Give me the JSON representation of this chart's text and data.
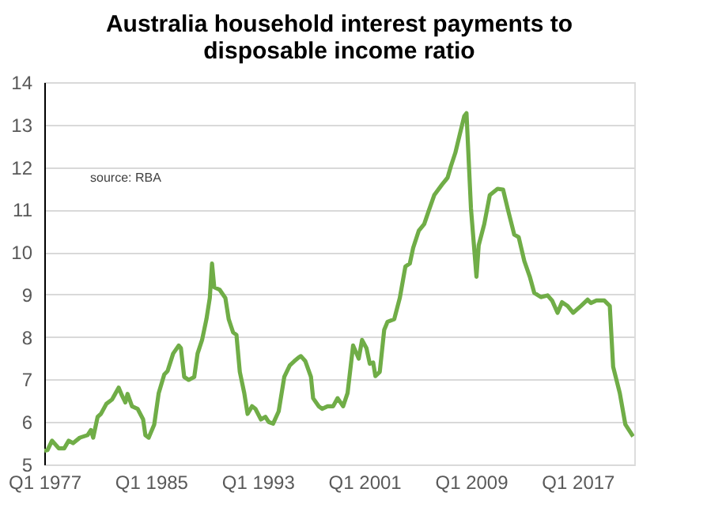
{
  "chart_data": {
    "type": "line",
    "title": "Australia household interest payments to disposable income ratio",
    "annotations": [
      "source:  RBA"
    ],
    "x": [
      "1977-01",
      "1977-04",
      "1977-08",
      "1978-02",
      "1978-07",
      "1978-11",
      "1979-03",
      "1979-09",
      "1980-04",
      "1980-07",
      "1980-09",
      "1981-01",
      "1981-04",
      "1981-09",
      "1982-02",
      "1982-04",
      "1982-08",
      "1982-11",
      "1983-02",
      "1983-04",
      "1983-08",
      "1984-01",
      "1984-06",
      "1984-08",
      "1984-11",
      "1985-04",
      "1985-08",
      "1986-01",
      "1986-04",
      "1986-09",
      "1987-02",
      "1987-04",
      "1987-07",
      "1987-11",
      "1988-04",
      "1988-07",
      "1988-11",
      "1989-03",
      "1989-06",
      "1989-08",
      "1989-10",
      "1990-03",
      "1990-08",
      "1990-11",
      "1991-03",
      "1991-06",
      "1991-09",
      "1992-01",
      "1992-04",
      "1992-08",
      "1992-11",
      "1993-04",
      "1993-08",
      "1993-11",
      "1994-03",
      "1994-08",
      "1995-01",
      "1995-06",
      "1995-10",
      "1996-02",
      "1996-04",
      "1996-08",
      "1997-01",
      "1997-03",
      "1997-08",
      "1997-11",
      "1998-04",
      "1998-09",
      "1999-01",
      "1999-06",
      "1999-10",
      "2000-03",
      "2000-08",
      "2000-11",
      "2001-03",
      "2001-06",
      "2001-09",
      "2001-11",
      "2002-03",
      "2002-07",
      "2002-10",
      "2003-04",
      "2003-09",
      "2004-02",
      "2004-06",
      "2004-09",
      "2005-02",
      "2005-07",
      "2005-11",
      "2006-04",
      "2006-11",
      "2007-04",
      "2007-07",
      "2007-11",
      "2008-03",
      "2008-07",
      "2008-09",
      "2009-01",
      "2009-06",
      "2009-08",
      "2010-01",
      "2010-06",
      "2011-01",
      "2011-06",
      "2011-10",
      "2012-04",
      "2012-08",
      "2013-01",
      "2013-06",
      "2013-10",
      "2014-04",
      "2014-10",
      "2015-02",
      "2015-07",
      "2015-11",
      "2016-04",
      "2016-09",
      "2017-04",
      "2017-10",
      "2018-01",
      "2018-06",
      "2019-01",
      "2019-06",
      "2019-09",
      "2020-03",
      "2020-08",
      "2021-03"
    ],
    "series": [
      {
        "color": "#70ad47",
        "values": [
          5.32,
          5.34,
          5.56,
          5.38,
          5.38,
          5.56,
          5.5,
          5.63,
          5.69,
          5.81,
          5.63,
          6.12,
          6.19,
          6.43,
          6.53,
          6.62,
          6.81,
          6.62,
          6.46,
          6.66,
          6.37,
          6.31,
          6.06,
          5.69,
          5.63,
          5.94,
          6.68,
          7.12,
          7.2,
          7.61,
          7.8,
          7.74,
          7.06,
          6.99,
          7.06,
          7.61,
          7.93,
          8.42,
          8.92,
          9.73,
          9.17,
          9.11,
          8.92,
          8.42,
          8.11,
          8.05,
          7.18,
          6.68,
          6.19,
          6.37,
          6.31,
          6.06,
          6.12,
          6.0,
          5.96,
          6.25,
          7.06,
          7.33,
          7.43,
          7.52,
          7.55,
          7.43,
          7.06,
          6.56,
          6.37,
          6.31,
          6.37,
          6.37,
          6.56,
          6.37,
          6.68,
          7.8,
          7.49,
          7.93,
          7.74,
          7.37,
          7.4,
          7.08,
          7.18,
          8.17,
          8.36,
          8.42,
          8.92,
          9.66,
          9.73,
          10.1,
          10.5,
          10.66,
          10.97,
          11.34,
          11.59,
          11.75,
          12.02,
          12.34,
          12.77,
          13.2,
          13.27,
          11.03,
          9.42,
          10.16,
          10.66,
          11.34,
          11.49,
          11.47,
          11.03,
          10.41,
          10.35,
          9.79,
          9.42,
          9.04,
          8.94,
          8.98,
          8.86,
          8.57,
          8.82,
          8.73,
          8.57,
          8.73,
          8.88,
          8.8,
          8.86,
          8.86,
          8.73,
          7.3,
          6.68,
          5.94,
          5.66
        ]
      }
    ],
    "xlim": [
      "1977-01",
      "2021-04"
    ],
    "xticks": [
      {
        "value": "1977-01",
        "label": "Q1 1977"
      },
      {
        "value": "1985-01",
        "label": "Q1 1985"
      },
      {
        "value": "1993-01",
        "label": "Q1 1993"
      },
      {
        "value": "2001-01",
        "label": "Q1 2001"
      },
      {
        "value": "2009-01",
        "label": "Q1 2009"
      },
      {
        "value": "2017-01",
        "label": "Q1 2017"
      }
    ],
    "ylim": [
      5,
      14
    ],
    "yticks": [
      5,
      6,
      7,
      8,
      9,
      10,
      11,
      12,
      13,
      14
    ],
    "grid": "y",
    "marker": "none",
    "line_style": "solid"
  }
}
